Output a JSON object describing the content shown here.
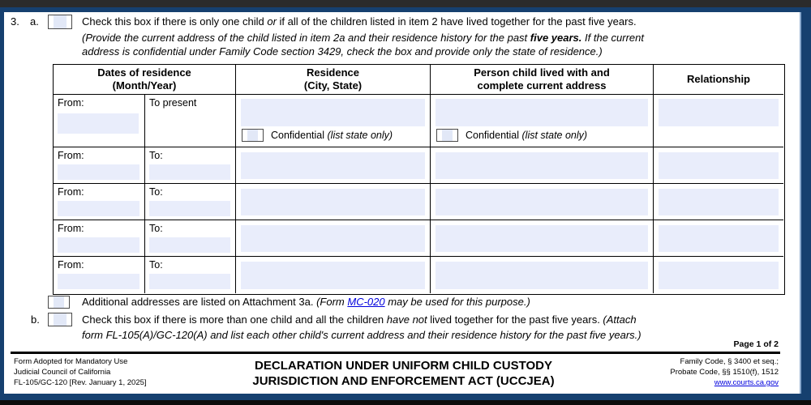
{
  "colors": {
    "frame_navy": "#16406f",
    "field_fill": "#e9edfb",
    "link_blue": "#0000dd",
    "checkbox_fill": "#e2e8f7"
  },
  "item3": {
    "number": "3.",
    "a_label": "a.",
    "a_text_pre": "Check this box if there is only one child ",
    "a_text_or": "or",
    "a_text_post": " if all of the children listed in item 2 have lived together for the past five years.",
    "note_line1_pre": "(Provide the current address of the child listed in item 2a and their residence history for the past ",
    "note_line1_bold": "five years.",
    "note_line1_post": " If the current",
    "note_line2": "address is confidential under Family Code section 3429, check the box and provide only the state of residence.)"
  },
  "table": {
    "header_dates_line1": "Dates of residence",
    "header_dates_line2": "(Month/Year)",
    "header_residence_line1": "Residence",
    "header_residence_line2": "(City, State)",
    "header_person_line1": "Person child lived with and",
    "header_person_line2": "complete current address",
    "header_relationship": "Relationship",
    "current_row": {
      "from_label": "From:",
      "to_label": "To present"
    },
    "confidential": {
      "label": "Confidential ",
      "note": "(list state only)"
    },
    "history_rows": [
      {
        "from_label": "From:",
        "to_label": "To:"
      },
      {
        "from_label": "From:",
        "to_label": "To:"
      },
      {
        "from_label": "From:",
        "to_label": "To:"
      },
      {
        "from_label": "From:",
        "to_label": "To:"
      }
    ]
  },
  "attachment": {
    "text": "Additional addresses are listed on Attachment 3a. ",
    "italic_pre": "(Form ",
    "link_label": "MC-020",
    "italic_post": " may be used for this purpose.)"
  },
  "item_b": {
    "label": "b.",
    "text_pre": "Check this box if there is more than one child and all the children ",
    "italic_have_not": "have not",
    "text_mid": " lived together for the past five years. ",
    "italic_attach": "(Attach",
    "line2": "form FL-105(A)/GC-120(A) and list each other child's current address and their residence history for the past five years.)"
  },
  "footer": {
    "page_marker": "Page 1 of 2",
    "left_line1": "Form Adopted for Mandatory Use",
    "left_line2": "Judicial Council of California",
    "left_line3": "FL-105/GC-120 [Rev. January 1, 2025]",
    "title_line1": "DECLARATION UNDER UNIFORM CHILD CUSTODY",
    "title_line2": "JURISDICTION AND ENFORCEMENT ACT (UCCJEA)",
    "right_line1": "Family Code, § 3400 et seq.;",
    "right_line2": "Probate Code, §§ 1510(f), 1512",
    "right_link": "www.courts.ca.gov"
  }
}
